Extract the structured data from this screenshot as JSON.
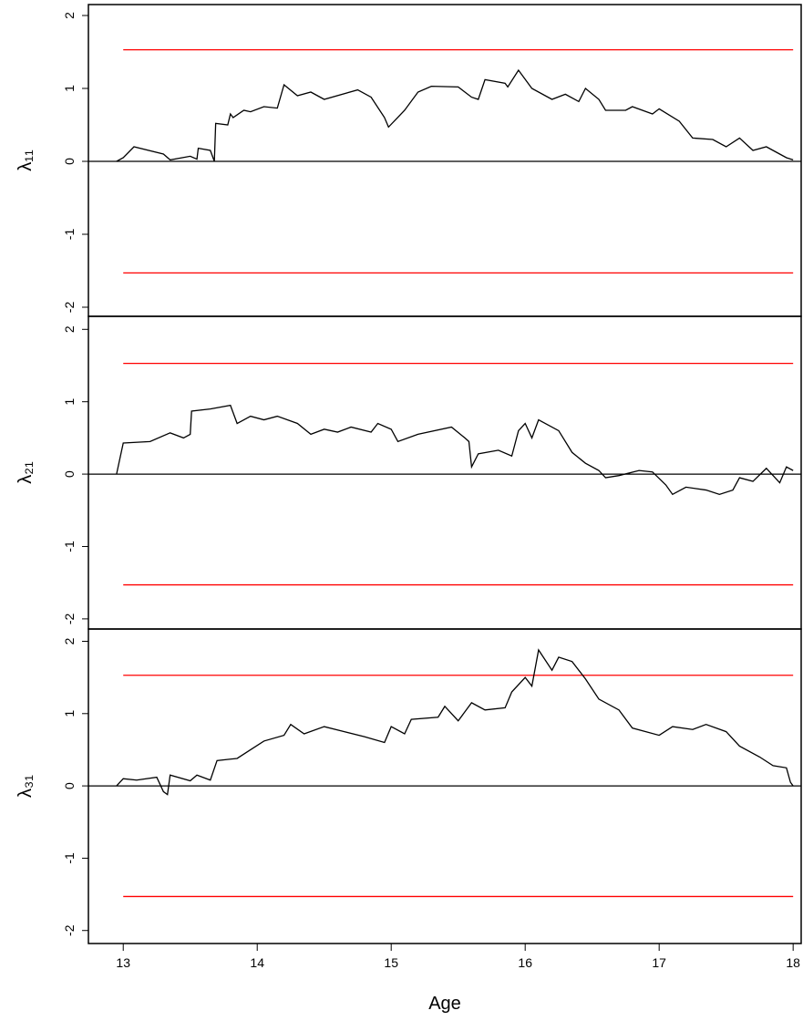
{
  "chart_data": [
    {
      "type": "line",
      "ylabel": "λ₁₁",
      "color": "#000000",
      "xlim": [
        12.74,
        18.06
      ],
      "ylim": [
        -2.125,
        2.15
      ],
      "yticks": [
        -2,
        -1,
        0,
        1,
        2
      ],
      "baseline": 0,
      "bounds": {
        "x": [
          13,
          18
        ],
        "values": [
          1.53,
          -1.53
        ],
        "color": "#ff0000"
      },
      "x": [
        12.95,
        13.0,
        13.08,
        13.3,
        13.35,
        13.5,
        13.55,
        13.56,
        13.65,
        13.68,
        13.69,
        13.78,
        13.8,
        13.82,
        13.9,
        13.95,
        14.05,
        14.15,
        14.2,
        14.3,
        14.4,
        14.5,
        14.75,
        14.85,
        14.95,
        14.98,
        15.1,
        15.2,
        15.3,
        15.5,
        15.6,
        15.65,
        15.7,
        15.85,
        15.87,
        15.95,
        16.05,
        16.2,
        16.3,
        16.4,
        16.45,
        16.55,
        16.6,
        16.75,
        16.8,
        16.95,
        17.0,
        17.15,
        17.25,
        17.4,
        17.5,
        17.6,
        17.7,
        17.8,
        17.9,
        17.95,
        18.0
      ],
      "values": [
        0,
        0.05,
        0.2,
        0.1,
        0.02,
        0.07,
        0.03,
        0.18,
        0.15,
        0,
        0.52,
        0.5,
        0.65,
        0.6,
        0.7,
        0.68,
        0.75,
        0.73,
        1.05,
        0.9,
        0.95,
        0.85,
        0.98,
        0.88,
        0.6,
        0.47,
        0.7,
        0.95,
        1.03,
        1.02,
        0.88,
        0.85,
        1.12,
        1.07,
        1.02,
        1.25,
        1.0,
        0.85,
        0.92,
        0.82,
        1.0,
        0.85,
        0.7,
        0.7,
        0.75,
        0.65,
        0.72,
        0.55,
        0.32,
        0.3,
        0.2,
        0.32,
        0.15,
        0.2,
        0.1,
        0.05,
        0.02
      ]
    },
    {
      "type": "line",
      "ylabel": "λ₂₁",
      "color": "#000000",
      "xlim": [
        12.74,
        18.06
      ],
      "ylim": [
        -2.14,
        2.18
      ],
      "yticks": [
        -2,
        -1,
        0,
        1,
        2
      ],
      "baseline": 0,
      "bounds": {
        "x": [
          13,
          18
        ],
        "values": [
          1.53,
          -1.53
        ],
        "color": "#ff0000"
      },
      "x": [
        12.95,
        13.0,
        13.2,
        13.35,
        13.45,
        13.5,
        13.51,
        13.65,
        13.8,
        13.85,
        13.95,
        14.05,
        14.15,
        14.3,
        14.4,
        14.5,
        14.6,
        14.7,
        14.85,
        14.9,
        15.0,
        15.05,
        15.2,
        15.45,
        15.55,
        15.58,
        15.6,
        15.65,
        15.8,
        15.9,
        15.95,
        16.0,
        16.05,
        16.1,
        16.25,
        16.35,
        16.45,
        16.55,
        16.6,
        16.7,
        16.85,
        16.95,
        17.05,
        17.1,
        17.2,
        17.35,
        17.45,
        17.55,
        17.6,
        17.7,
        17.8,
        17.9,
        17.95,
        18.0
      ],
      "values": [
        0,
        0.43,
        0.45,
        0.57,
        0.5,
        0.55,
        0.87,
        0.9,
        0.95,
        0.7,
        0.8,
        0.75,
        0.8,
        0.7,
        0.55,
        0.62,
        0.58,
        0.65,
        0.58,
        0.7,
        0.62,
        0.45,
        0.55,
        0.65,
        0.5,
        0.45,
        0.1,
        0.28,
        0.33,
        0.25,
        0.6,
        0.7,
        0.5,
        0.75,
        0.6,
        0.3,
        0.15,
        0.05,
        -0.05,
        -0.02,
        0.05,
        0.03,
        -0.15,
        -0.28,
        -0.18,
        -0.22,
        -0.28,
        -0.22,
        -0.05,
        -0.1,
        0.08,
        -0.12,
        0.1,
        0.05
      ]
    },
    {
      "type": "line",
      "ylabel": "λ₃₁",
      "color": "#000000",
      "xlim": [
        12.74,
        18.06
      ],
      "ylim": [
        -2.18,
        2.17
      ],
      "yticks": [
        -2,
        -1,
        0,
        1,
        2
      ],
      "baseline": 0,
      "xticks": [
        13,
        14,
        15,
        16,
        17,
        18
      ],
      "xlabel": "Age",
      "bounds": {
        "x": [
          13,
          18
        ],
        "values": [
          1.53,
          -1.53
        ],
        "color": "#ff0000"
      },
      "x": [
        12.95,
        13.0,
        13.1,
        13.25,
        13.3,
        13.33,
        13.35,
        13.5,
        13.55,
        13.65,
        13.7,
        13.85,
        13.95,
        14.05,
        14.2,
        14.25,
        14.35,
        14.5,
        14.65,
        14.8,
        14.95,
        15.0,
        15.1,
        15.15,
        15.35,
        15.4,
        15.5,
        15.6,
        15.7,
        15.85,
        15.9,
        16.0,
        16.05,
        16.1,
        16.2,
        16.25,
        16.35,
        16.45,
        16.55,
        16.7,
        16.8,
        17.0,
        17.1,
        17.25,
        17.35,
        17.5,
        17.6,
        17.75,
        17.85,
        17.95,
        17.98,
        18.0
      ],
      "values": [
        0,
        0.1,
        0.08,
        0.12,
        -0.08,
        -0.12,
        0.15,
        0.07,
        0.15,
        0.08,
        0.35,
        0.38,
        0.5,
        0.62,
        0.7,
        0.85,
        0.72,
        0.82,
        0.75,
        0.68,
        0.6,
        0.82,
        0.72,
        0.92,
        0.95,
        1.1,
        0.9,
        1.15,
        1.05,
        1.08,
        1.3,
        1.5,
        1.38,
        1.88,
        1.6,
        1.78,
        1.72,
        1.48,
        1.2,
        1.05,
        0.8,
        0.7,
        0.82,
        0.78,
        0.85,
        0.75,
        0.55,
        0.4,
        0.28,
        0.25,
        0.05,
        0
      ]
    }
  ]
}
